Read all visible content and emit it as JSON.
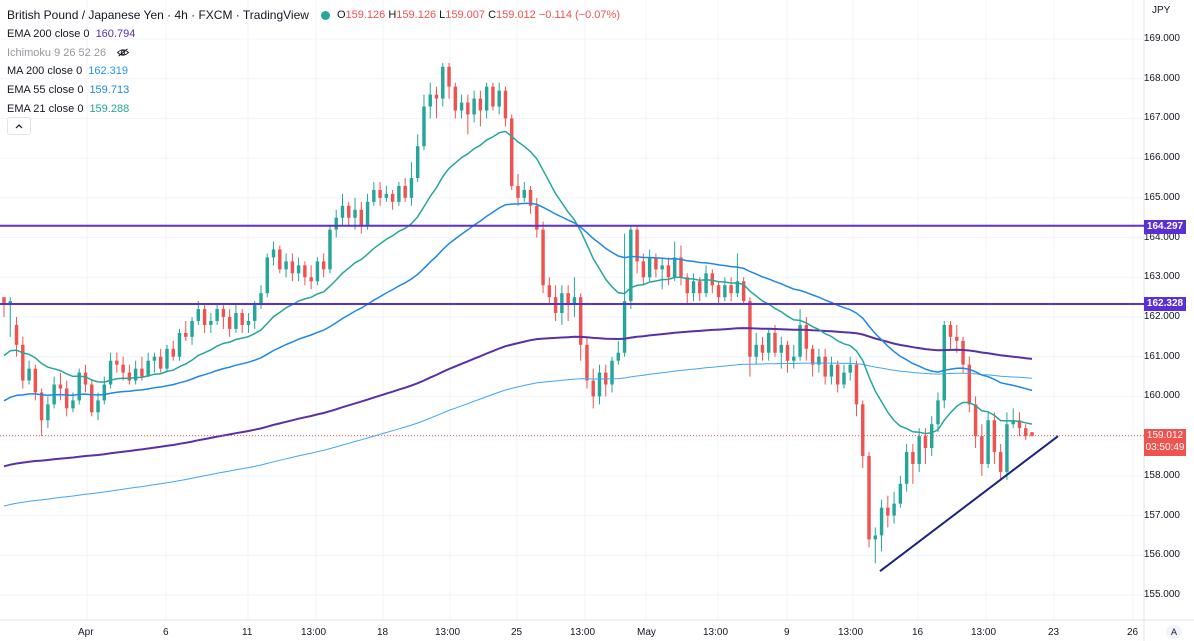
{
  "header": {
    "title": "British Pound / Japanese Yen · 4h · FXCM · TradingView",
    "ohlc": {
      "o_label": "O",
      "o": "159.126",
      "h_label": "H",
      "h": "159.126",
      "l_label": "L",
      "l": "159.007",
      "c_label": "C",
      "c": "159.012",
      "change": "−0.114 (−0.07%)"
    }
  },
  "indicators": [
    {
      "name": "EMA 200 close 0",
      "value": "160.794",
      "color": "#5b2fa8"
    },
    {
      "name": "Ichimoku 9 26 52 26",
      "value": "",
      "color": "#9598a1",
      "icon": "eye-hidden-icon"
    },
    {
      "name": "MA 200 close 0",
      "value": "162.319",
      "color": "#2196f3"
    },
    {
      "name": "EMA 55 close 0",
      "value": "159.713",
      "color": "#1e88e5"
    },
    {
      "name": "EMA 21 close 0",
      "value": "159.288",
      "color": "#26a69a"
    }
  ],
  "currency": "JPY",
  "price_axis": [
    "169.000",
    "168.000",
    "167.000",
    "166.000",
    "165.000",
    "164.000",
    "163.000",
    "162.000",
    "161.000",
    "160.000",
    "159.000",
    "158.000",
    "157.000",
    "156.000",
    "155.000"
  ],
  "time_axis": [
    "Apr",
    "6",
    "11",
    "13:00",
    "18",
    "13:00",
    "25",
    "13:00",
    "May",
    "13:00",
    "9",
    "13:00",
    "16",
    "13:00",
    "23",
    "26"
  ],
  "levels": [
    {
      "label": "164.297",
      "price": 164.297,
      "color": "#5b2fd6"
    },
    {
      "label": "162.328",
      "price": 162.328,
      "color": "#5b2fd6"
    }
  ],
  "current_price": {
    "price": "159.012",
    "countdown": "03:50:49",
    "color": "#ef5350"
  },
  "colors": {
    "up": "#26a69a",
    "down": "#ef5350",
    "trendline": "#1a237e",
    "ema21": "#26a69a",
    "ema55": "#1e88e5",
    "ema200": "#5b2fa8",
    "ma200": "#42a5f5"
  },
  "auto_button": "A",
  "collapse_button": "^",
  "chart_data": {
    "type": "candlestick",
    "ylim": [
      154.5,
      169.5
    ],
    "bar_count": 170,
    "candles": [
      [
        162.5,
        162.3,
        162.3,
        162.0
      ],
      [
        162.3,
        162.4,
        162.5,
        161.5
      ],
      [
        161.8,
        161.3,
        162.0,
        161.0
      ],
      [
        161.3,
        160.4,
        161.5,
        160.2
      ],
      [
        160.4,
        160.7,
        160.9,
        160.3
      ],
      [
        160.7,
        160.1,
        160.8,
        159.9
      ],
      [
        160.1,
        159.4,
        160.2,
        159.0
      ],
      [
        159.4,
        159.8,
        160.0,
        159.2
      ],
      [
        159.8,
        160.3,
        160.5,
        159.7
      ],
      [
        160.3,
        160.2,
        160.6,
        159.9
      ],
      [
        160.2,
        159.7,
        160.4,
        159.5
      ],
      [
        159.7,
        159.9,
        160.1,
        159.6
      ],
      [
        159.9,
        160.6,
        160.7,
        159.8
      ],
      [
        160.6,
        160.3,
        160.8,
        160.1
      ],
      [
        160.3,
        159.6,
        160.4,
        159.5
      ],
      [
        159.6,
        159.9,
        160.1,
        159.4
      ],
      [
        159.9,
        160.3,
        160.5,
        159.8
      ],
      [
        160.3,
        160.9,
        161.1,
        160.2
      ],
      [
        160.9,
        160.8,
        161.1,
        160.6
      ],
      [
        160.8,
        160.6,
        161.0,
        160.4
      ],
      [
        160.6,
        160.4,
        160.8,
        160.3
      ],
      [
        160.4,
        160.7,
        160.9,
        160.3
      ],
      [
        160.7,
        160.5,
        161.0,
        160.4
      ],
      [
        160.5,
        160.9,
        161.1,
        160.5
      ],
      [
        160.9,
        161.0,
        161.1,
        160.6
      ],
      [
        161.0,
        160.7,
        161.2,
        160.6
      ],
      [
        160.7,
        161.2,
        161.3,
        160.6
      ],
      [
        161.2,
        161.0,
        161.4,
        160.9
      ],
      [
        161.0,
        161.6,
        161.7,
        160.9
      ],
      [
        161.6,
        161.5,
        161.9,
        161.4
      ],
      [
        161.5,
        161.9,
        162.0,
        161.3
      ],
      [
        161.9,
        162.2,
        162.4,
        161.8
      ],
      [
        162.2,
        161.8,
        162.3,
        161.6
      ],
      [
        161.8,
        161.9,
        162.1,
        161.6
      ],
      [
        161.9,
        162.2,
        162.3,
        161.8
      ],
      [
        162.2,
        162.0,
        162.3,
        161.7
      ],
      [
        162.0,
        161.7,
        162.2,
        161.5
      ],
      [
        161.7,
        162.1,
        162.3,
        161.6
      ],
      [
        162.1,
        161.8,
        162.2,
        161.6
      ],
      [
        161.8,
        161.9,
        162.1,
        161.6
      ],
      [
        161.9,
        162.3,
        162.4,
        161.7
      ],
      [
        162.3,
        162.6,
        162.8,
        162.2
      ],
      [
        162.6,
        163.5,
        163.6,
        162.5
      ],
      [
        163.5,
        163.7,
        163.9,
        163.3
      ],
      [
        163.7,
        163.2,
        163.8,
        163.1
      ],
      [
        163.2,
        163.4,
        163.6,
        163.0
      ],
      [
        163.4,
        163.1,
        163.6,
        162.9
      ],
      [
        163.1,
        163.3,
        163.5,
        162.9
      ],
      [
        163.3,
        163.0,
        163.4,
        162.8
      ],
      [
        163.0,
        162.9,
        163.3,
        162.7
      ],
      [
        162.9,
        163.4,
        163.5,
        162.8
      ],
      [
        163.4,
        163.2,
        163.6,
        163.0
      ],
      [
        163.2,
        164.2,
        164.3,
        163.1
      ],
      [
        164.2,
        164.5,
        164.7,
        164.0
      ],
      [
        164.5,
        164.8,
        165.1,
        164.3
      ],
      [
        164.8,
        164.5,
        164.9,
        164.3
      ],
      [
        164.5,
        164.7,
        165.0,
        164.2
      ],
      [
        164.7,
        164.3,
        164.9,
        164.1
      ],
      [
        164.3,
        164.9,
        165.1,
        164.2
      ],
      [
        164.9,
        165.2,
        165.4,
        164.8
      ],
      [
        165.2,
        165.0,
        165.4,
        164.8
      ],
      [
        165.0,
        165.1,
        165.3,
        164.9
      ],
      [
        165.1,
        164.9,
        165.2,
        164.7
      ],
      [
        164.9,
        165.3,
        165.4,
        164.8
      ],
      [
        165.3,
        165.0,
        165.5,
        164.9
      ],
      [
        165.0,
        165.5,
        165.9,
        164.8
      ],
      [
        165.5,
        166.3,
        166.6,
        165.4
      ],
      [
        166.3,
        167.3,
        167.6,
        166.2
      ],
      [
        167.3,
        167.6,
        167.9,
        167.0
      ],
      [
        167.6,
        167.5,
        167.8,
        167.0
      ],
      [
        167.5,
        168.3,
        168.4,
        167.3
      ],
      [
        168.3,
        167.8,
        168.4,
        167.5
      ],
      [
        167.8,
        167.2,
        167.9,
        167.0
      ],
      [
        167.2,
        167.4,
        167.6,
        167.0
      ],
      [
        167.4,
        167.1,
        167.6,
        166.6
      ],
      [
        167.1,
        167.5,
        167.7,
        166.9
      ],
      [
        167.5,
        167.2,
        167.7,
        166.8
      ],
      [
        167.2,
        167.8,
        167.9,
        167.0
      ],
      [
        167.8,
        167.3,
        167.9,
        167.2
      ],
      [
        167.3,
        167.7,
        167.9,
        167.1
      ],
      [
        167.7,
        167.0,
        167.8,
        166.8
      ],
      [
        167.0,
        165.3,
        167.1,
        165.2
      ],
      [
        165.3,
        165.0,
        165.6,
        164.8
      ],
      [
        165.0,
        165.2,
        165.4,
        164.9
      ],
      [
        165.2,
        164.8,
        165.3,
        164.6
      ],
      [
        164.8,
        164.2,
        165.0,
        164.0
      ],
      [
        164.2,
        162.8,
        164.4,
        162.6
      ],
      [
        162.8,
        162.5,
        163.0,
        162.3
      ],
      [
        162.5,
        162.1,
        162.8,
        161.9
      ],
      [
        162.1,
        162.6,
        162.8,
        161.8
      ],
      [
        162.6,
        162.3,
        162.8,
        161.9
      ],
      [
        162.3,
        162.5,
        163.0,
        162.0
      ],
      [
        162.5,
        161.3,
        162.6,
        160.9
      ],
      [
        161.3,
        160.4,
        161.5,
        160.2
      ],
      [
        160.4,
        160.0,
        160.7,
        159.7
      ],
      [
        160.0,
        160.6,
        160.8,
        159.8
      ],
      [
        160.6,
        160.3,
        160.8,
        160.0
      ],
      [
        160.3,
        160.9,
        161.0,
        160.1
      ],
      [
        160.9,
        161.1,
        161.4,
        160.8
      ],
      [
        161.1,
        162.4,
        164.1,
        161.0
      ],
      [
        162.4,
        164.2,
        164.3,
        162.2
      ],
      [
        164.2,
        163.4,
        164.3,
        163.1
      ],
      [
        163.4,
        163.0,
        163.6,
        162.8
      ],
      [
        163.0,
        163.5,
        163.7,
        162.9
      ],
      [
        163.5,
        163.2,
        163.6,
        163.0
      ],
      [
        163.2,
        163.3,
        163.5,
        162.7
      ],
      [
        163.3,
        163.0,
        163.5,
        162.8
      ],
      [
        163.0,
        163.5,
        163.9,
        162.9
      ],
      [
        163.5,
        163.0,
        163.8,
        162.8
      ],
      [
        163.0,
        162.6,
        163.1,
        162.3
      ],
      [
        162.6,
        162.9,
        163.1,
        162.4
      ],
      [
        162.9,
        162.6,
        163.0,
        162.4
      ],
      [
        162.6,
        163.1,
        163.3,
        162.5
      ],
      [
        163.1,
        162.8,
        163.2,
        162.6
      ],
      [
        162.8,
        162.5,
        162.9,
        162.3
      ],
      [
        162.5,
        162.8,
        163.0,
        162.4
      ],
      [
        162.8,
        162.6,
        163.0,
        162.4
      ],
      [
        162.6,
        162.9,
        163.6,
        162.5
      ],
      [
        162.9,
        162.4,
        163.0,
        162.3
      ],
      [
        162.4,
        161.0,
        162.5,
        160.5
      ],
      [
        161.0,
        161.3,
        161.6,
        160.8
      ],
      [
        161.3,
        161.1,
        161.5,
        160.9
      ],
      [
        161.1,
        161.6,
        161.7,
        160.9
      ],
      [
        161.6,
        161.1,
        161.8,
        161.0
      ],
      [
        161.1,
        161.3,
        161.5,
        160.7
      ],
      [
        161.3,
        160.9,
        161.4,
        160.6
      ],
      [
        160.9,
        161.0,
        161.3,
        160.7
      ],
      [
        161.0,
        161.8,
        162.2,
        160.9
      ],
      [
        161.8,
        161.2,
        162.0,
        160.9
      ],
      [
        161.2,
        160.8,
        161.3,
        160.5
      ],
      [
        160.8,
        161.0,
        161.2,
        160.6
      ],
      [
        161.0,
        160.5,
        161.2,
        160.3
      ],
      [
        160.5,
        160.8,
        161.0,
        160.3
      ],
      [
        160.8,
        160.3,
        160.9,
        160.1
      ],
      [
        160.3,
        160.6,
        160.8,
        160.2
      ],
      [
        160.6,
        160.8,
        161.0,
        160.4
      ],
      [
        160.8,
        159.8,
        160.9,
        159.5
      ],
      [
        159.8,
        158.5,
        159.9,
        158.2
      ],
      [
        158.5,
        156.4,
        158.6,
        156.2
      ],
      [
        156.4,
        156.5,
        156.7,
        155.8
      ],
      [
        156.5,
        157.2,
        157.4,
        156.1
      ],
      [
        157.2,
        157.0,
        157.5,
        156.7
      ],
      [
        157.0,
        157.3,
        157.6,
        156.8
      ],
      [
        157.3,
        157.8,
        158.0,
        157.2
      ],
      [
        157.8,
        158.6,
        158.8,
        157.6
      ],
      [
        158.6,
        158.3,
        158.8,
        157.8
      ],
      [
        158.3,
        159.0,
        159.2,
        158.1
      ],
      [
        159.0,
        158.7,
        159.2,
        158.3
      ],
      [
        158.7,
        159.3,
        159.5,
        158.5
      ],
      [
        159.3,
        159.9,
        160.1,
        159.1
      ],
      [
        159.9,
        161.8,
        161.9,
        159.7
      ],
      [
        161.8,
        161.5,
        161.9,
        161.2
      ],
      [
        161.5,
        161.4,
        161.8,
        161.1
      ],
      [
        161.4,
        160.8,
        161.5,
        160.6
      ],
      [
        160.8,
        159.8,
        161.0,
        159.6
      ],
      [
        159.8,
        159.0,
        160.0,
        158.7
      ],
      [
        159.0,
        158.3,
        159.3,
        158.0
      ],
      [
        158.3,
        159.4,
        159.6,
        158.2
      ],
      [
        159.4,
        158.6,
        159.6,
        158.3
      ],
      [
        158.6,
        158.1,
        158.8,
        157.9
      ],
      [
        158.1,
        159.3,
        159.6,
        157.9
      ],
      [
        159.3,
        159.4,
        159.7,
        159.2
      ],
      [
        159.4,
        159.2,
        159.6,
        159.0
      ],
      [
        159.2,
        159.0,
        159.3,
        158.9
      ],
      [
        159.1,
        159.0,
        159.1,
        159.0
      ]
    ],
    "trendline": [
      [
        156.0,
        0
      ],
      [
        158.9,
        1
      ]
    ]
  }
}
